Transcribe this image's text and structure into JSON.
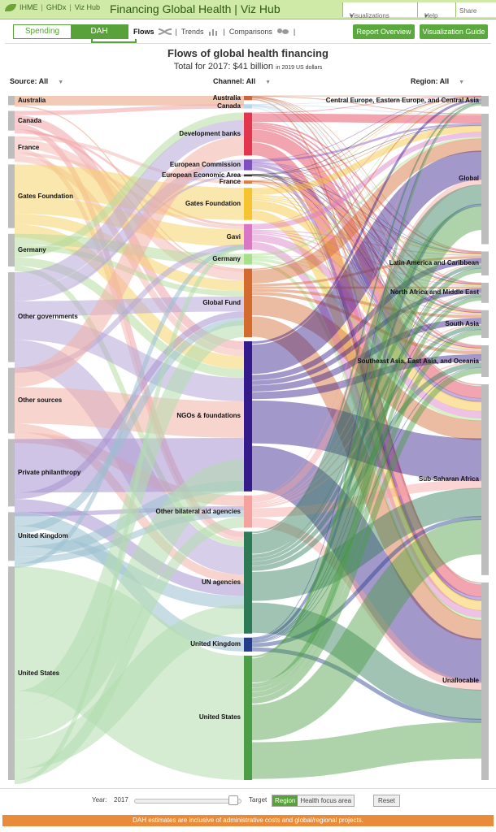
{
  "topbar": {
    "brand_links": [
      "IHME",
      "GHDx",
      "Viz Hub"
    ],
    "app_title": "Financing Global Health | Viz Hub",
    "visualizations_label": "Visualizations",
    "help_label": "Help",
    "share_label": "Share"
  },
  "toolbar": {
    "toggle": [
      "Spending",
      "DAH"
    ],
    "selected_toggle": "DAH",
    "views": [
      "Flows",
      "Trends",
      "Comparisons"
    ],
    "active_view": "Flows",
    "report_button": "Report Overview",
    "guide_button": "Visualization Guide"
  },
  "chart_header": {
    "title": "Flows of global health financing",
    "subtitle": "Total for 2017: $41 billion",
    "unit_note": "in 2019 US dollars"
  },
  "filters": {
    "source": "Source: All",
    "channel": "Channel: All",
    "region": "Region: All"
  },
  "chart_data": {
    "type": "sankey",
    "title": "Flows of global health financing",
    "year": "2017",
    "total": "$41 billion",
    "unit": "2019 US dollars",
    "source_names": [
      "Australia",
      "Canada",
      "France",
      "Gates Foundation",
      "Germany",
      "Other governments",
      "Other sources",
      "Private philanthropy",
      "United Kingdom",
      "United States"
    ],
    "source_values": [
      1.0,
      2.1,
      2.4,
      6.8,
      3.5,
      9.6,
      7.0,
      7.2,
      5.2,
      22.8
    ],
    "source_colors": [
      "#e8a07c",
      "#f0a3a8",
      "#f4b9b2",
      "#f6d36b",
      "#b7dd9f",
      "#b7a8d9",
      "#f2b1a8",
      "#a894cf",
      "#9bbfd0",
      "#b2dcae"
    ],
    "channel_names": [
      "Australia",
      "Canada",
      "Development banks",
      "European Commission",
      "European Economic Area",
      "France",
      "Gates Foundation",
      "Gavi",
      "Germany",
      "Global Fund",
      "NGOs & foundations",
      "Other bilateral aid agencies",
      "UN agencies",
      "United Kingdom",
      "United States"
    ],
    "channel_values": [
      0.4,
      0.4,
      4.0,
      1.0,
      0.2,
      0.3,
      3.0,
      2.4,
      1.0,
      6.4,
      14.0,
      3.0,
      9.5,
      1.3,
      11.6
    ],
    "channel_colors": [
      "#c8663c",
      "#b9d6ec",
      "#e2364e",
      "#7d4fbf",
      "#333333",
      "#e07a3a",
      "#f7c431",
      "#d977c4",
      "#a6e08a",
      "#d36b2e",
      "#341a8a",
      "#f3a29e",
      "#2f7a56",
      "#233d8c",
      "#4b9e45"
    ],
    "target_names": [
      "Central Europe, Eastern Europe, and Central Asia",
      "Global",
      "Latin America and Caribbean",
      "North Africa and Middle East",
      "South Asia",
      "Southeast Asia, East Asia, and Oceania",
      "Sub-Saharan Africa",
      "Unallocable"
    ],
    "target_values": [
      1.1,
      13.6,
      2.5,
      2.1,
      2.9,
      3.3,
      19.9,
      20.6
    ],
    "flows": [
      [
        0,
        0,
        0.9
      ],
      [
        0,
        9,
        0.1
      ],
      [
        1,
        1,
        0.4
      ],
      [
        1,
        10,
        0.8
      ],
      [
        1,
        12,
        0.5
      ],
      [
        1,
        9,
        0.2
      ],
      [
        1,
        7,
        0.2
      ],
      [
        2,
        5,
        0.3
      ],
      [
        2,
        9,
        0.8
      ],
      [
        2,
        12,
        0.4
      ],
      [
        2,
        7,
        0.3
      ],
      [
        2,
        10,
        0.6
      ],
      [
        3,
        6,
        3.0
      ],
      [
        3,
        7,
        1.6
      ],
      [
        3,
        9,
        1.0
      ],
      [
        3,
        10,
        1.2
      ],
      [
        4,
        8,
        1.0
      ],
      [
        4,
        9,
        0.5
      ],
      [
        4,
        2,
        0.7
      ],
      [
        4,
        10,
        0.8
      ],
      [
        4,
        12,
        0.5
      ],
      [
        5,
        2,
        1.5
      ],
      [
        5,
        3,
        1.0
      ],
      [
        5,
        4,
        0.2
      ],
      [
        5,
        9,
        1.4
      ],
      [
        5,
        10,
        2.2
      ],
      [
        5,
        12,
        2.6
      ],
      [
        5,
        7,
        0.5
      ],
      [
        6,
        2,
        1.8
      ],
      [
        6,
        10,
        3.4
      ],
      [
        6,
        12,
        0.8
      ],
      [
        6,
        11,
        1.0
      ],
      [
        7,
        10,
        5.0
      ],
      [
        7,
        9,
        0.6
      ],
      [
        7,
        12,
        1.2
      ],
      [
        7,
        11,
        0.4
      ],
      [
        8,
        13,
        1.3
      ],
      [
        8,
        9,
        0.7
      ],
      [
        8,
        12,
        1.2
      ],
      [
        8,
        10,
        1.0
      ],
      [
        8,
        11,
        0.6
      ],
      [
        8,
        7,
        0.4
      ],
      [
        9,
        14,
        11.6
      ],
      [
        9,
        9,
        1.6
      ],
      [
        9,
        10,
        3.0
      ],
      [
        9,
        12,
        2.7
      ],
      [
        9,
        11,
        1.0
      ],
      [
        9,
        7,
        0.4
      ]
    ]
  },
  "bottom_controls": {
    "year_label": "Year:",
    "year_value": "2017",
    "year_fraction": 0.93,
    "target_label": "Target",
    "target_options": [
      "Region",
      "Health focus area"
    ],
    "target_selected": "Region",
    "reset_label": "Reset"
  },
  "footer_note": "DAH estimates are inclusive of administrative costs and global/regional projects."
}
